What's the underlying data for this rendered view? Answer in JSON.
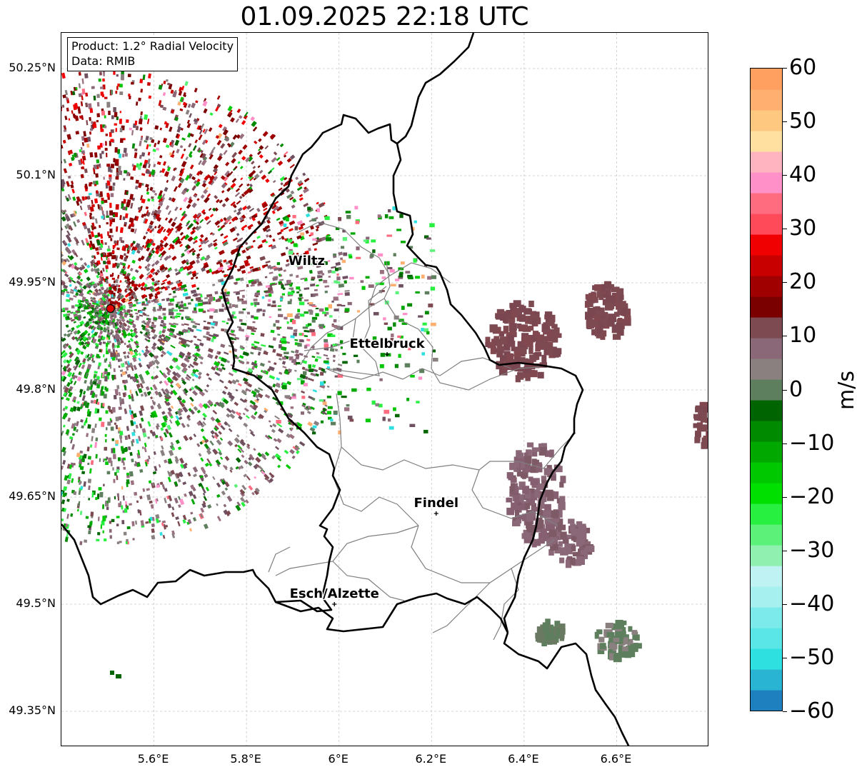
{
  "title": "01.09.2025 22:18 UTC",
  "info": {
    "product": "Product: 1.2° Radial Velocity",
    "source": "Data: RMIB"
  },
  "axes": {
    "lat_ticks": [
      "50.25°N",
      "50.1°N",
      "49.95°N",
      "49.8°N",
      "49.65°N",
      "49.5°N",
      "49.35°N"
    ],
    "lon_ticks": [
      "5.6°E",
      "5.8°E",
      "6°E",
      "6.2°E",
      "6.4°E",
      "6.6°E"
    ],
    "lat_values": [
      50.25,
      50.1,
      49.95,
      49.8,
      49.65,
      49.5,
      49.35
    ],
    "lon_values": [
      5.6,
      5.8,
      6.0,
      6.2,
      6.4,
      6.6
    ],
    "extent": {
      "lon_min": 5.4,
      "lon_max": 6.8,
      "lat_min": 49.3,
      "lat_max": 50.3
    },
    "grid": true
  },
  "places": [
    {
      "name": "Wiltz",
      "lon": 5.93,
      "lat": 49.966,
      "marker": false
    },
    {
      "name": "Ettelbruck",
      "lon": 6.104,
      "lat": 49.85,
      "marker": true
    },
    {
      "name": "Findel",
      "lon": 6.21,
      "lat": 49.627,
      "marker": true
    },
    {
      "name": "Esch/Alzette",
      "lon": 5.99,
      "lat": 49.5,
      "marker": true
    }
  ],
  "radar_site": {
    "lon": 5.506,
    "lat": 49.914,
    "color": "#e00000"
  },
  "colorbar": {
    "unit": "m/s",
    "min": -60,
    "max": 60,
    "tick_values": [
      60,
      50,
      40,
      30,
      20,
      10,
      0,
      -10,
      -20,
      -30,
      -40,
      -50,
      -60
    ],
    "tick_labels": [
      "60",
      "50",
      "40",
      "30",
      "20",
      "10",
      "0",
      "−10",
      "−20",
      "−30",
      "−40",
      "−50",
      "−60"
    ],
    "colors": [
      "#1f80c0",
      "#28b4d2",
      "#2ee0e0",
      "#5ae6e6",
      "#7ceaea",
      "#a6f0f0",
      "#bff2f2",
      "#90f0b0",
      "#5cf27a",
      "#28f040",
      "#00e000",
      "#00c800",
      "#00a800",
      "#008a00",
      "#006400",
      "#5e7f5e",
      "#8a8080",
      "#8a6878",
      "#7e4a52",
      "#7a0000",
      "#a00000",
      "#c80000",
      "#f00000",
      "#ff4a5a",
      "#ff6c80",
      "#ff90c8",
      "#ffb4c0",
      "#ffe0a0",
      "#ffc880",
      "#ffb070",
      "#ffa060"
    ]
  }
}
